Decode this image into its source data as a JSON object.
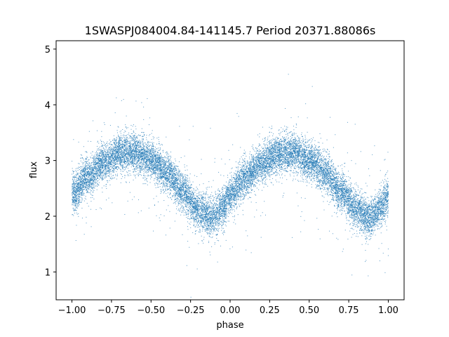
{
  "chart_data": {
    "type": "scatter",
    "title": "1SWASPJ084004.84-141145.7 Period 20371.88086s",
    "xlabel": "phase",
    "ylabel": "flux",
    "xlim": [
      -1.1,
      1.1
    ],
    "ylim": [
      0.5,
      5.15
    ],
    "xticks": [
      -1.0,
      -0.75,
      -0.5,
      -0.25,
      0.0,
      0.25,
      0.5,
      0.75,
      1.0
    ],
    "xtick_labels": [
      "−1.00",
      "−0.75",
      "−0.50",
      "−0.25",
      "0.00",
      "0.25",
      "0.50",
      "0.75",
      "1.00"
    ],
    "yticks": [
      1,
      2,
      3,
      4,
      5
    ],
    "ytick_labels": [
      "1",
      "2",
      "3",
      "4",
      "5"
    ],
    "grid": false,
    "point_color": "#1f77b4",
    "series": [
      {
        "description_curve": [
          [
            -1.0,
            2.4
          ],
          [
            -0.9,
            2.72
          ],
          [
            -0.8,
            2.95
          ],
          [
            -0.7,
            3.12
          ],
          [
            -0.6,
            3.15
          ],
          [
            -0.5,
            3.0
          ],
          [
            -0.4,
            2.78
          ],
          [
            -0.3,
            2.45
          ],
          [
            -0.2,
            2.1
          ],
          [
            -0.12,
            1.97
          ],
          [
            -0.05,
            2.15
          ],
          [
            0.0,
            2.38
          ],
          [
            0.1,
            2.7
          ],
          [
            0.2,
            2.95
          ],
          [
            0.3,
            3.1
          ],
          [
            0.4,
            3.15
          ],
          [
            0.5,
            3.0
          ],
          [
            0.6,
            2.78
          ],
          [
            0.7,
            2.45
          ],
          [
            0.8,
            2.12
          ],
          [
            0.88,
            1.98
          ],
          [
            0.95,
            2.12
          ],
          [
            1.0,
            2.38
          ]
        ],
        "scatter_sigma": 0.17,
        "point_count": 16000
      }
    ]
  }
}
